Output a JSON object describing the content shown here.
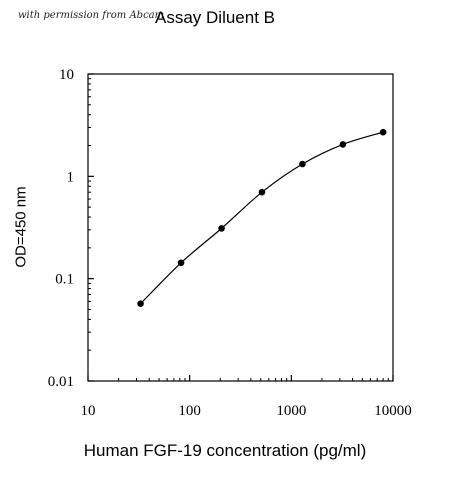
{
  "header": {
    "watermark": "with permission from Abcam"
  },
  "chart_data": {
    "type": "line",
    "title": "Assay Diluent B",
    "xlabel": "Human FGF-19 concentration (pg/ml)",
    "ylabel": "OD=450 nm",
    "xscale": "log",
    "yscale": "log",
    "xlim": [
      10,
      10000
    ],
    "ylim": [
      0.01,
      10
    ],
    "x_ticks": [
      10,
      100,
      1000,
      10000
    ],
    "x_tick_labels": [
      "10",
      "100",
      "1000",
      "10000"
    ],
    "y_ticks": [
      0.01,
      0.1,
      1,
      10
    ],
    "y_tick_labels": [
      "0.01",
      "0.1",
      "1",
      "10"
    ],
    "grid": false,
    "legend": "none",
    "line_color": "#000000",
    "marker_color": "#000000",
    "series": [
      {
        "x": [
          32.9,
          82.3,
          206,
          514,
          1286,
          3215,
          8000
        ],
        "y": [
          0.057,
          0.143,
          0.31,
          0.7,
          1.32,
          2.05,
          2.7
        ]
      }
    ]
  }
}
